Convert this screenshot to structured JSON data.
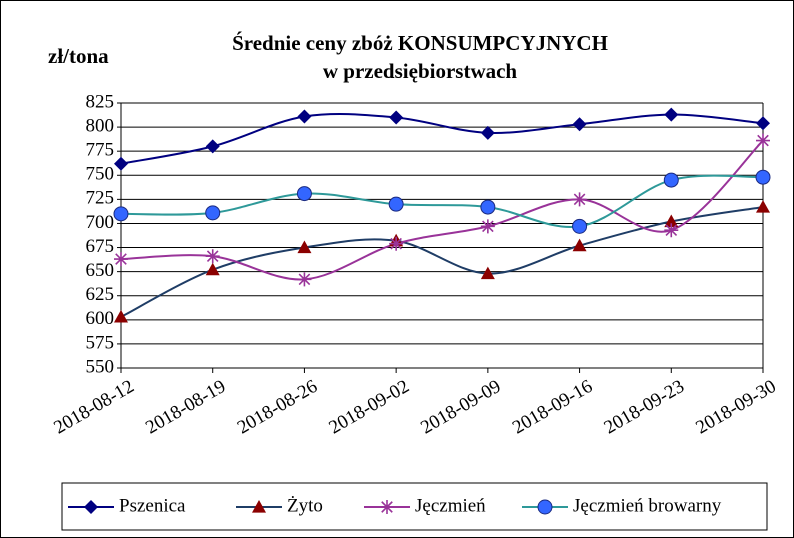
{
  "chart_data": {
    "type": "line",
    "title": [
      "Średnie ceny zbóż KONSUMPCYJNYCH",
      "w przedsiębiorstwach"
    ],
    "y_label": "zł/tona",
    "categories": [
      "2018-08-12",
      "2018-08-19",
      "2018-08-26",
      "2018-09-02",
      "2018-09-09",
      "2018-09-16",
      "2018-09-23",
      "2018-09-30"
    ],
    "series": [
      {
        "name": "Pszenica",
        "color": "#000080",
        "marker": "diamond",
        "marker_color": "#000080",
        "values": [
          762,
          780,
          811,
          810,
          794,
          803,
          813,
          804
        ]
      },
      {
        "name": "Żyto",
        "color": "#1f3d66",
        "marker": "triangle",
        "marker_color": "#8b0000",
        "values": [
          603,
          652,
          675,
          682,
          648,
          677,
          702,
          717
        ]
      },
      {
        "name": "Jęczmień",
        "color": "#993399",
        "marker": "asterisk",
        "marker_color": "#993399",
        "values": [
          663,
          666,
          642,
          679,
          697,
          725,
          693,
          786
        ]
      },
      {
        "name": "Jęczmień browarny",
        "color": "#2e9999",
        "marker": "circle",
        "marker_color": "#3366ff",
        "values": [
          710,
          711,
          731,
          720,
          717,
          697,
          745,
          748
        ]
      }
    ],
    "ylim": [
      550,
      825
    ],
    "yticks": [
      550,
      575,
      600,
      625,
      650,
      675,
      700,
      725,
      750,
      775,
      800,
      825
    ],
    "grid": true,
    "legend": "bottom"
  }
}
